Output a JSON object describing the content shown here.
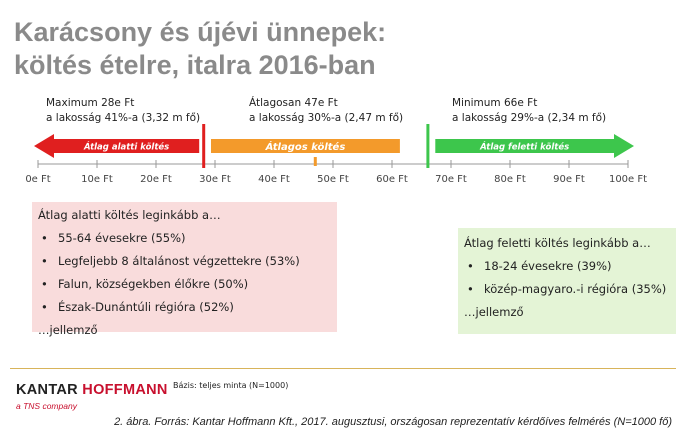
{
  "title": {
    "line1": "Karácsony és újévi ünnepek:",
    "line2": "költés ételre, italra 2016-ban"
  },
  "chart_data": {
    "type": "range-scale",
    "x": [
      0,
      10,
      20,
      30,
      40,
      50,
      60,
      70,
      80,
      90,
      100
    ],
    "tick_labels": [
      "0e Ft",
      "10e Ft",
      "20e Ft",
      "30e Ft",
      "40e Ft",
      "50e Ft",
      "60e Ft",
      "70e Ft",
      "80e Ft",
      "90e Ft",
      "100e Ft"
    ],
    "xlim": [
      0,
      100
    ],
    "thresholds": {
      "maximum": 28,
      "average": 47,
      "minimum": 66
    },
    "segments": [
      {
        "label": "Átlag alatti költés",
        "from": 0,
        "to": 28,
        "color": "#e01f1f"
      },
      {
        "label": "Átlagos költés",
        "from": 30,
        "to": 61,
        "color": "#f39a2b"
      },
      {
        "label": "Átlag feletti költés",
        "from": 67,
        "to": 100,
        "color": "#3dc64c"
      }
    ],
    "annotations": [
      {
        "line1": "Maximum 28e Ft",
        "line2": "a lakosság 41%-a (3,32 m fő)",
        "value": 28
      },
      {
        "line1": "Átlagosan 47e Ft",
        "line2": "a lakosság 30%-a (2,47 m fő)",
        "value": 47
      },
      {
        "line1": "Minimum 66e Ft",
        "line2": "a lakosság 29%-a (2,34 m fő)",
        "value": 66
      }
    ]
  },
  "below_box": {
    "heading": "Átlag alatti költés leginkább a…",
    "items": [
      "55-64 évesekre (55%)",
      "Legfeljebb 8 általánost végzettekre (53%)",
      "Falun, községekben élőkre (50%)",
      "Észak-Dunántúli régióra (52%)"
    ],
    "footer": "…jellemző"
  },
  "above_box": {
    "heading": "Átlag feletti költés leginkább a…",
    "items": [
      "18-24 évesekre (39%)",
      "közép-magyaro.-i régióra (35%)"
    ],
    "footer": "…jellemző"
  },
  "logo": {
    "part1": "KANTAR",
    "part2": "HOFFMANN",
    "sub": "a TNS company"
  },
  "basis": "Bázis: teljes minta (N=1000)",
  "source": "2. ábra. Forrás: Kantar Hoffmann Kft., 2017. augusztusi, országosan reprezentatív kérdőíves felmérés (N=1000 fő)",
  "colors": {
    "red": "#e01f1f",
    "orange": "#f39a2b",
    "green": "#3dc64c",
    "title": "#8a8a8a"
  }
}
